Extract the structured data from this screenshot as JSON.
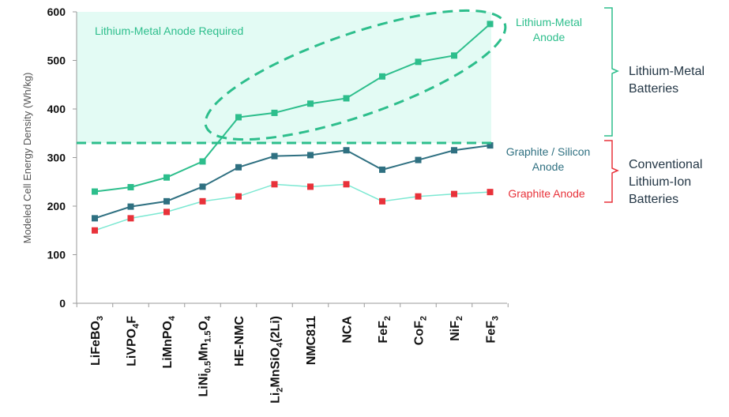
{
  "chart_data": {
    "type": "line",
    "title": "",
    "xlabel": "",
    "ylabel": "Modeled Cell Energy Density (Wh/kg)",
    "ylim": [
      0,
      600
    ],
    "yticks": [
      0,
      100,
      200,
      300,
      400,
      500,
      600
    ],
    "categories": [
      {
        "main": "LiFeBO",
        "sub": "3",
        "tail": ""
      },
      {
        "main": "LiVPO",
        "sub": "4",
        "tail": "F"
      },
      {
        "main": "LiMnPO",
        "sub": "4",
        "tail": ""
      },
      {
        "parts": [
          [
            "LiNi",
            ""
          ],
          [
            "0.5",
            "s"
          ],
          [
            "Mn",
            ""
          ],
          [
            "1.5",
            "s"
          ],
          [
            "O",
            ""
          ],
          [
            "4",
            "s"
          ]
        ]
      },
      {
        "main": "HE-NMC",
        "sub": "",
        "tail": ""
      },
      {
        "parts": [
          [
            "Li",
            ""
          ],
          [
            "2",
            "s"
          ],
          [
            "MnSiO",
            ""
          ],
          [
            "4",
            "s"
          ],
          [
            "(2Li)",
            ""
          ]
        ]
      },
      {
        "main": "NMC811",
        "sub": "",
        "tail": ""
      },
      {
        "main": "NCA",
        "sub": "",
        "tail": ""
      },
      {
        "main": "FeF",
        "sub": "2",
        "tail": ""
      },
      {
        "main": "CoF",
        "sub": "2",
        "tail": ""
      },
      {
        "main": "NiF",
        "sub": "2",
        "tail": ""
      },
      {
        "main": "FeF",
        "sub": "3",
        "tail": ""
      }
    ],
    "series": [
      {
        "key": "metal",
        "color": "#2dbe8c",
        "values": [
          230,
          239,
          259,
          292,
          383,
          392,
          411,
          422,
          467,
          497,
          510,
          575
        ]
      },
      {
        "key": "silicon",
        "color": "#2f7081",
        "values": [
          175,
          199,
          210,
          240,
          280,
          303,
          305,
          315,
          275,
          295,
          315,
          325
        ]
      },
      {
        "key": "graphite",
        "color": "#7ce8d2",
        "marker_color": "#e8323a",
        "values": [
          150,
          175,
          188,
          210,
          220,
          245,
          240,
          245,
          210,
          220,
          225,
          229
        ]
      }
    ],
    "threshold": {
      "value": 330,
      "color": "#2dbe8c"
    },
    "shaded_region_color": "#e3fbf4",
    "annotations": {
      "region_label": "Lithium-Metal Anode Required",
      "metal_line1": "Lithium-Metal",
      "metal_line2": "Anode",
      "silicon_line1": "Graphite / Silicon",
      "silicon_line2": "Anode",
      "graphite": "Graphite Anode"
    },
    "groups": {
      "metal_line1": "Lithium-Metal",
      "metal_line2": "Batteries",
      "conv_line1": "Conventional",
      "conv_line2": "Lithium-Ion",
      "conv_line3": "Batteries"
    },
    "colors": {
      "metal_text": "#2dbe8c",
      "silicon_text": "#2f7081",
      "graphite_text": "#e8323a",
      "metal_brace": "#2dbe8c",
      "conv_brace": "#e8323a"
    }
  }
}
